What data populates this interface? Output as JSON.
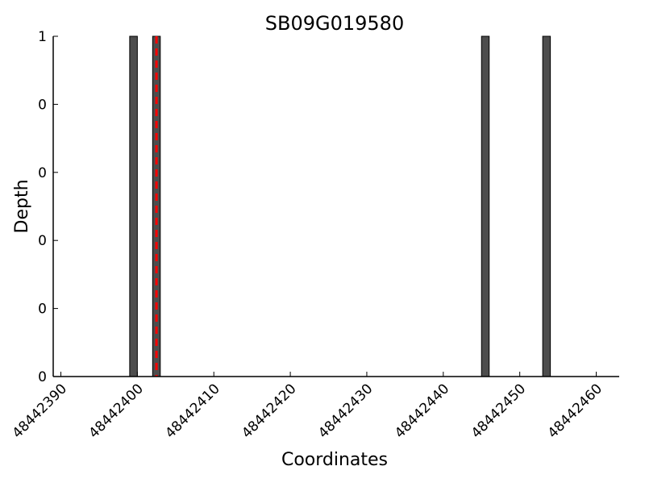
{
  "chart_data": {
    "type": "bar",
    "title": "SB09G019580",
    "xlabel": "Coordinates",
    "ylabel": "Depth",
    "xlim": [
      48442389,
      48442463
    ],
    "ylim": [
      0,
      1
    ],
    "x_ticks": [
      48442390,
      48442400,
      48442410,
      48442420,
      48442430,
      48442440,
      48442450,
      48442460
    ],
    "y_ticks": [
      0,
      0.2,
      0.4,
      0.6,
      0.8,
      1
    ],
    "y_tick_labels": [
      "0",
      "0",
      "0",
      "0",
      "0",
      "1"
    ],
    "bars": [
      {
        "start": 48442399,
        "end": 48442400,
        "value": 1
      },
      {
        "start": 48442402,
        "end": 48442403,
        "value": 1
      },
      {
        "start": 48442445,
        "end": 48442446,
        "value": 1
      },
      {
        "start": 48442453,
        "end": 48442454,
        "value": 1
      }
    ],
    "marker_line": {
      "x": 48442402.5,
      "style": "dashed",
      "color": "#ff0000"
    },
    "bar_color": "#4d4d4d",
    "grid": false
  }
}
